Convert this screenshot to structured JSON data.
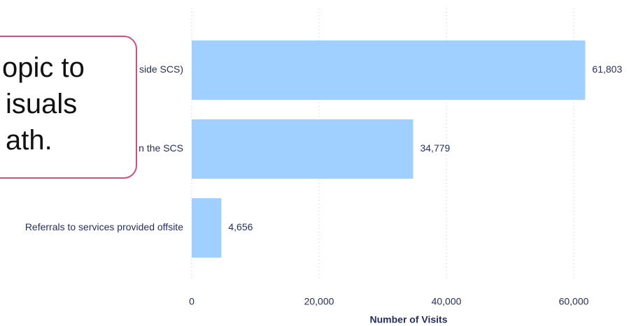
{
  "chart_data": {
    "type": "barh",
    "categories": [
      "side SCS)",
      "n the SCS",
      "Referrals to services provided offsite"
    ],
    "values": [
      61803,
      34779,
      4656
    ],
    "value_labels": [
      "61,803",
      "34,779",
      "4,656"
    ],
    "color": "#9fd0ff",
    "xlabel": "Number of Visits",
    "xlim": [
      0,
      66000
    ],
    "xticks": [
      0,
      {
        "value": 20000,
        "label": "20,000"
      },
      {
        "value": 40000,
        "label": "40,000"
      },
      {
        "value": 60000,
        "label": "60,000"
      }
    ],
    "grid": true
  },
  "callout": {
    "lines": [
      "opic to",
      "isuals",
      "ath."
    ]
  }
}
